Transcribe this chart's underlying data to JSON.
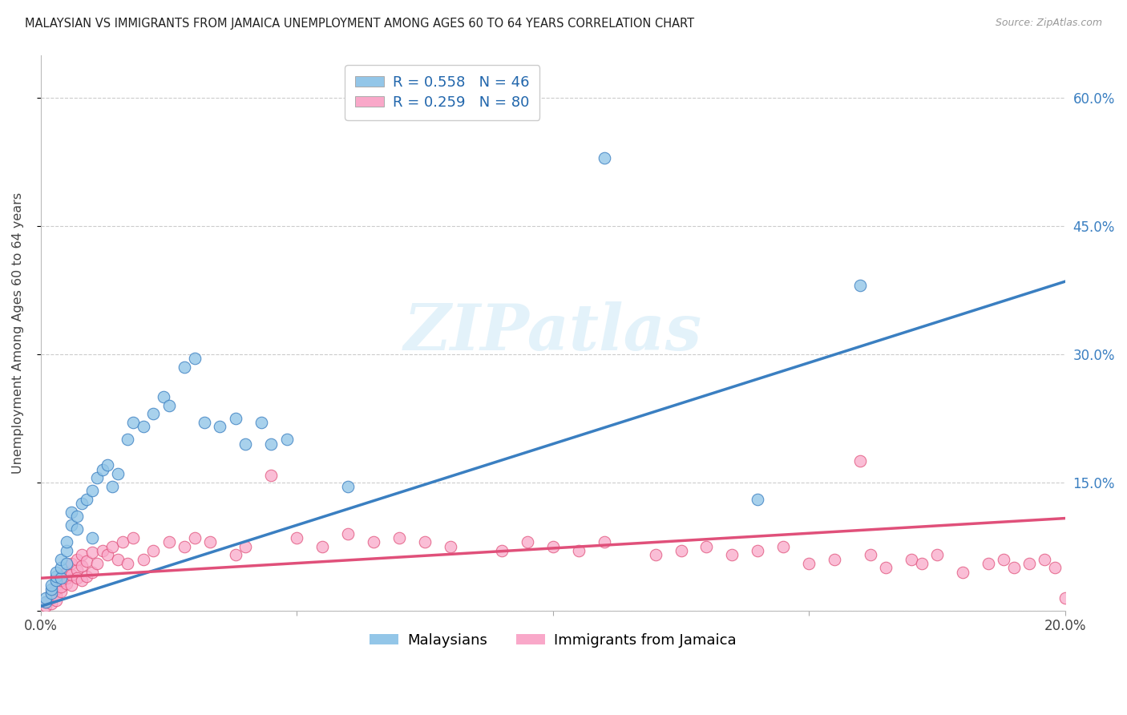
{
  "title": "MALAYSIAN VS IMMIGRANTS FROM JAMAICA UNEMPLOYMENT AMONG AGES 60 TO 64 YEARS CORRELATION CHART",
  "source": "Source: ZipAtlas.com",
  "ylabel": "Unemployment Among Ages 60 to 64 years",
  "xlim": [
    0.0,
    0.2
  ],
  "ylim": [
    0.0,
    0.65
  ],
  "blue_color": "#93c6e8",
  "blue_line_color": "#3a7fc1",
  "pink_color": "#f9a8c9",
  "pink_line_color": "#e0507a",
  "blue_R": 0.558,
  "blue_N": 46,
  "pink_R": 0.259,
  "pink_N": 80,
  "watermark": "ZIPatlas",
  "legend_label_blue": "Malaysians",
  "legend_label_pink": "Immigrants from Jamaica",
  "blue_scatter_x": [
    0.001,
    0.001,
    0.002,
    0.002,
    0.002,
    0.003,
    0.003,
    0.003,
    0.004,
    0.004,
    0.004,
    0.005,
    0.005,
    0.005,
    0.006,
    0.006,
    0.007,
    0.007,
    0.008,
    0.009,
    0.01,
    0.01,
    0.011,
    0.012,
    0.013,
    0.014,
    0.015,
    0.017,
    0.018,
    0.02,
    0.022,
    0.024,
    0.025,
    0.028,
    0.03,
    0.032,
    0.035,
    0.038,
    0.04,
    0.043,
    0.045,
    0.048,
    0.06,
    0.11,
    0.14,
    0.16
  ],
  "blue_scatter_y": [
    0.01,
    0.015,
    0.02,
    0.025,
    0.03,
    0.035,
    0.04,
    0.045,
    0.038,
    0.05,
    0.06,
    0.055,
    0.07,
    0.08,
    0.1,
    0.115,
    0.095,
    0.11,
    0.125,
    0.13,
    0.085,
    0.14,
    0.155,
    0.165,
    0.17,
    0.145,
    0.16,
    0.2,
    0.22,
    0.215,
    0.23,
    0.25,
    0.24,
    0.285,
    0.295,
    0.22,
    0.215,
    0.225,
    0.195,
    0.22,
    0.195,
    0.2,
    0.145,
    0.53,
    0.13,
    0.38
  ],
  "pink_scatter_x": [
    0.001,
    0.001,
    0.002,
    0.002,
    0.002,
    0.003,
    0.003,
    0.003,
    0.003,
    0.004,
    0.004,
    0.004,
    0.004,
    0.005,
    0.005,
    0.005,
    0.006,
    0.006,
    0.006,
    0.007,
    0.007,
    0.007,
    0.008,
    0.008,
    0.008,
    0.009,
    0.009,
    0.01,
    0.01,
    0.011,
    0.012,
    0.013,
    0.014,
    0.015,
    0.016,
    0.017,
    0.018,
    0.02,
    0.022,
    0.025,
    0.028,
    0.03,
    0.033,
    0.038,
    0.04,
    0.045,
    0.05,
    0.055,
    0.06,
    0.065,
    0.07,
    0.075,
    0.08,
    0.09,
    0.095,
    0.1,
    0.105,
    0.11,
    0.12,
    0.125,
    0.13,
    0.135,
    0.14,
    0.145,
    0.15,
    0.155,
    0.16,
    0.162,
    0.165,
    0.17,
    0.172,
    0.175,
    0.18,
    0.185,
    0.188,
    0.19,
    0.193,
    0.196,
    0.198,
    0.2
  ],
  "pink_scatter_y": [
    0.005,
    0.01,
    0.008,
    0.015,
    0.02,
    0.012,
    0.018,
    0.025,
    0.03,
    0.022,
    0.028,
    0.035,
    0.04,
    0.032,
    0.038,
    0.045,
    0.03,
    0.042,
    0.055,
    0.048,
    0.06,
    0.038,
    0.052,
    0.065,
    0.035,
    0.058,
    0.04,
    0.068,
    0.045,
    0.055,
    0.07,
    0.065,
    0.075,
    0.06,
    0.08,
    0.055,
    0.085,
    0.06,
    0.07,
    0.08,
    0.075,
    0.085,
    0.08,
    0.065,
    0.075,
    0.158,
    0.085,
    0.075,
    0.09,
    0.08,
    0.085,
    0.08,
    0.075,
    0.07,
    0.08,
    0.075,
    0.07,
    0.08,
    0.065,
    0.07,
    0.075,
    0.065,
    0.07,
    0.075,
    0.055,
    0.06,
    0.175,
    0.065,
    0.05,
    0.06,
    0.055,
    0.065,
    0.045,
    0.055,
    0.06,
    0.05,
    0.055,
    0.06,
    0.05,
    0.015
  ],
  "blue_trendline_x": [
    0.0,
    0.2
  ],
  "blue_trendline_y": [
    0.005,
    0.385
  ],
  "pink_trendline_x": [
    0.0,
    0.2
  ],
  "pink_trendline_y": [
    0.038,
    0.108
  ]
}
